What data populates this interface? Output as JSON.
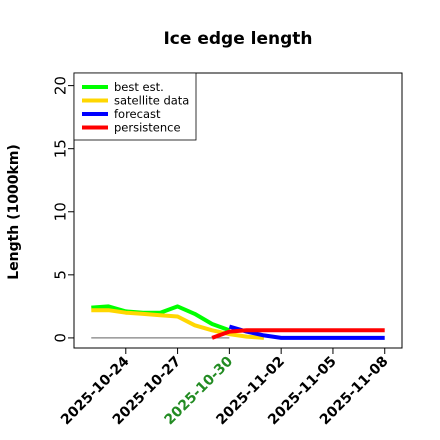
{
  "chart_data": {
    "type": "line",
    "title": "Ice edge length",
    "xlabel": "",
    "ylabel": "Length (1000km)",
    "ylim": [
      -0.8,
      21
    ],
    "xlim": [
      "2025-10-21",
      "2025-11-09"
    ],
    "yticks": [
      "0",
      "5",
      "10",
      "15",
      "20"
    ],
    "xticks": [
      {
        "label": "2025-10-24",
        "date": "2025-10-24",
        "color": "#000000"
      },
      {
        "label": "2025-10-27",
        "date": "2025-10-27",
        "color": "#000000"
      },
      {
        "label": "2025-10-30",
        "date": "2025-10-30",
        "color": "#228b22"
      },
      {
        "label": "2025-11-02",
        "date": "2025-11-02",
        "color": "#000000"
      },
      {
        "label": "2025-11-05",
        "date": "2025-11-05",
        "color": "#000000"
      },
      {
        "label": "2025-11-08",
        "date": "2025-11-08",
        "color": "#000000"
      }
    ],
    "legend_position": "top-left",
    "series": [
      {
        "name": "best est.",
        "color": "#00ff00",
        "x": [
          "2025-10-22",
          "2025-10-23",
          "2025-10-24",
          "2025-10-25",
          "2025-10-26",
          "2025-10-27",
          "2025-10-28",
          "2025-10-29",
          "2025-10-30"
        ],
        "y": [
          2.4,
          2.5,
          2.1,
          2.0,
          2.0,
          2.5,
          1.9,
          1.1,
          0.6
        ]
      },
      {
        "name": "satellite data",
        "color": "#ffd700",
        "x": [
          "2025-10-22",
          "2025-10-23",
          "2025-10-24",
          "2025-10-25",
          "2025-10-26",
          "2025-10-27",
          "2025-10-28",
          "2025-10-29",
          "2025-10-30",
          "2025-10-31",
          "2025-11-01"
        ],
        "y": [
          2.2,
          2.2,
          2.0,
          1.9,
          1.8,
          1.7,
          1.0,
          0.6,
          0.3,
          0.1,
          0.0
        ]
      },
      {
        "name": "forecast",
        "color": "#0000ff",
        "x": [
          "2025-10-30",
          "2025-10-31",
          "2025-11-01",
          "2025-11-02",
          "2025-11-03",
          "2025-11-04",
          "2025-11-05",
          "2025-11-06",
          "2025-11-07",
          "2025-11-08"
        ],
        "y": [
          0.9,
          0.5,
          0.2,
          0.0,
          0.0,
          0.0,
          0.0,
          0.0,
          0.0,
          0.0
        ]
      },
      {
        "name": "persistence",
        "color": "#ff0000",
        "x": [
          "2025-10-29",
          "2025-10-30",
          "2025-10-31",
          "2025-11-01",
          "2025-11-02",
          "2025-11-03",
          "2025-11-04",
          "2025-11-05",
          "2025-11-06",
          "2025-11-07",
          "2025-11-08"
        ],
        "y": [
          0.0,
          0.5,
          0.6,
          0.6,
          0.6,
          0.6,
          0.6,
          0.6,
          0.6,
          0.6,
          0.6
        ]
      }
    ],
    "reference_lines": [
      {
        "y": 0,
        "color": "#808080",
        "x": [
          "2025-10-22",
          "2025-10-30"
        ]
      }
    ]
  }
}
